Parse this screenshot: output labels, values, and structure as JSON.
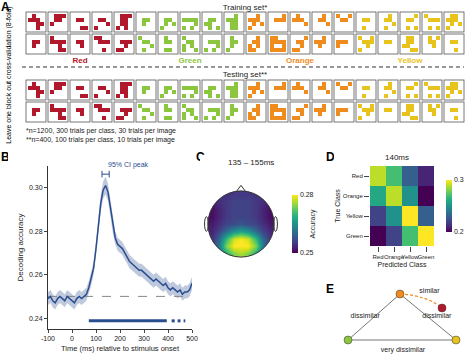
{
  "diagram_A": {
    "label": "A",
    "training_title": "Training set*",
    "testing_title": "Testing set**",
    "side_label": "Leave one block out cross-validation (8-fold)",
    "classes": [
      {
        "name": "Red",
        "color": "#b2182b"
      },
      {
        "name": "Green",
        "color": "#8cc63f"
      },
      {
        "name": "Orange",
        "color": "#f08c1e"
      },
      {
        "name": "Yellow",
        "color": "#e8c31c"
      }
    ],
    "images_per_class": 10,
    "footnotes": [
      "*n=1200, 300 trials per class, 30 trials per image",
      "**n=400, 100 trials per class, 10 trials per image"
    ]
  },
  "chart_data": [
    {
      "label": "B",
      "type": "line",
      "color": "#2a4d8f",
      "grid": false,
      "x": [
        -100,
        -90,
        -80,
        -70,
        -60,
        -50,
        -40,
        -30,
        -20,
        -10,
        0,
        10,
        20,
        30,
        40,
        50,
        60,
        70,
        80,
        90,
        100,
        110,
        120,
        130,
        140,
        150,
        160,
        170,
        180,
        190,
        200,
        210,
        220,
        230,
        240,
        250,
        260,
        270,
        280,
        290,
        300,
        310,
        320,
        330,
        340,
        350,
        360,
        370,
        380,
        390,
        400,
        410,
        420,
        430,
        440,
        450,
        460,
        470,
        480,
        490,
        500
      ],
      "values": [
        0.249,
        0.25,
        0.248,
        0.247,
        0.249,
        0.25,
        0.249,
        0.248,
        0.25,
        0.249,
        0.248,
        0.247,
        0.249,
        0.25,
        0.249,
        0.25,
        0.251,
        0.254,
        0.258,
        0.263,
        0.272,
        0.283,
        0.293,
        0.299,
        0.301,
        0.298,
        0.291,
        0.283,
        0.277,
        0.274,
        0.273,
        0.272,
        0.27,
        0.268,
        0.266,
        0.265,
        0.264,
        0.263,
        0.262,
        0.262,
        0.261,
        0.26,
        0.259,
        0.258,
        0.257,
        0.258,
        0.257,
        0.256,
        0.255,
        0.256,
        0.254,
        0.253,
        0.254,
        0.253,
        0.252,
        0.253,
        0.251,
        0.252,
        0.252,
        0.253,
        0.256
      ],
      "error": [
        0.003,
        0.003,
        0.003,
        0.003,
        0.003,
        0.003,
        0.003,
        0.003,
        0.003,
        0.003,
        0.003,
        0.003,
        0.003,
        0.003,
        0.003,
        0.003,
        0.003,
        0.003,
        0.003,
        0.003,
        0.003,
        0.004,
        0.004,
        0.004,
        0.004,
        0.004,
        0.004,
        0.004,
        0.003,
        0.003,
        0.003,
        0.003,
        0.003,
        0.003,
        0.003,
        0.003,
        0.003,
        0.003,
        0.003,
        0.003,
        0.003,
        0.003,
        0.003,
        0.003,
        0.003,
        0.003,
        0.003,
        0.003,
        0.003,
        0.003,
        0.003,
        0.003,
        0.003,
        0.003,
        0.003,
        0.003,
        0.003,
        0.003,
        0.003,
        0.003,
        0.003
      ],
      "xlim": [
        -100,
        500
      ],
      "xticks": [
        -100,
        0,
        100,
        200,
        300,
        400,
        500
      ],
      "ylim": [
        0.235,
        0.31
      ],
      "yticks": [
        0.24,
        0.26,
        0.28,
        {
          "value": 0.3,
          "label": "0.30"
        }
      ],
      "x_label": "Time (ms) relative to stimulus onset",
      "y_label": "Decoding accuracy",
      "chance": 0.25,
      "peak_label": "95% CI peak",
      "peak_range": [
        125,
        155
      ],
      "significant": [
        [
          70,
          395
        ],
        [
          415,
          428
        ],
        [
          440,
          452
        ],
        [
          465,
          472
        ]
      ]
    },
    {
      "label": "C",
      "type": "heatmap",
      "title": "135 – 155ms",
      "colorbar_title": "Accuracy",
      "z": [
        [
          0.254,
          0.254,
          0.254,
          0.255,
          0.255,
          0.255,
          0.254,
          0.254,
          0.254
        ],
        [
          0.252,
          0.254,
          0.255,
          0.256,
          0.256,
          0.256,
          0.255,
          0.254,
          0.252
        ],
        [
          0.251,
          0.253,
          0.255,
          0.256,
          0.256,
          0.256,
          0.255,
          0.253,
          0.251
        ],
        [
          0.251,
          0.253,
          0.255,
          0.256,
          0.256,
          0.256,
          0.255,
          0.253,
          0.251
        ],
        [
          0.252,
          0.254,
          0.256,
          0.257,
          0.258,
          0.257,
          0.256,
          0.254,
          0.252
        ],
        [
          0.253,
          0.256,
          0.26,
          0.265,
          0.267,
          0.265,
          0.26,
          0.256,
          0.253
        ],
        [
          0.254,
          0.26,
          0.27,
          0.278,
          0.28,
          0.278,
          0.27,
          0.26,
          0.254
        ],
        [
          0.255,
          0.262,
          0.274,
          0.28,
          0.28,
          0.28,
          0.274,
          0.262,
          0.255
        ],
        [
          0.255,
          0.26,
          0.268,
          0.274,
          0.276,
          0.274,
          0.268,
          0.26,
          0.255
        ]
      ],
      "zlim": [
        0.25,
        0.28
      ],
      "zticks": [
        0.25,
        0.28
      ]
    },
    {
      "label": "D",
      "type": "heatmap",
      "title": "140ms",
      "x_categories": [
        "Red",
        "Orange",
        "Yellow",
        "Green"
      ],
      "y_categories": [
        "Red",
        "Orange",
        "Yellow",
        "Green"
      ],
      "x_label": "Predicted Class",
      "y_label": "True Class",
      "z": [
        [
          0.29,
          0.27,
          0.23,
          0.21
        ],
        [
          0.26,
          0.29,
          0.25,
          0.2
        ],
        [
          0.22,
          0.25,
          0.3,
          0.23
        ],
        [
          0.2,
          0.22,
          0.27,
          0.3
        ]
      ],
      "zlim": [
        0.2,
        0.3
      ],
      "zticks": [
        0.2,
        0.3
      ]
    }
  ],
  "diagram_E": {
    "label": "E",
    "nodes": [
      {
        "color": "#8cc63f"
      },
      {
        "color": "#f08c1e"
      },
      {
        "color": "#b2182b"
      },
      {
        "color": "#e8c31c"
      }
    ],
    "edges": [
      {
        "from": 1,
        "to": 2,
        "label": "similar",
        "line_style": "dashed"
      },
      {
        "from": 0,
        "to": 1,
        "label": "dissimilar",
        "line_style": "solid"
      },
      {
        "from": 1,
        "to": 3,
        "label": "dissimilar",
        "line_style": "solid"
      },
      {
        "from": 0,
        "to": 3,
        "label": "very dissimilar",
        "line_style": "solid"
      }
    ]
  }
}
